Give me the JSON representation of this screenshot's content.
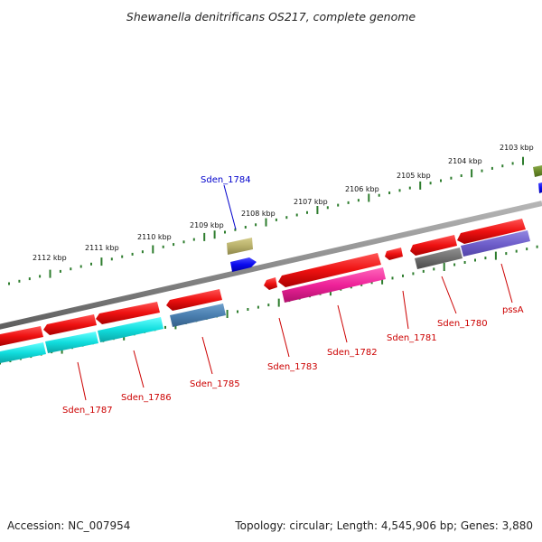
{
  "title": "Shewanella denitrificans OS217, complete genome",
  "footer": {
    "accession": "Accession: NC_007954",
    "topology": "Topology: circular; Length: 4,545,906 bp; Genes: 3,880"
  },
  "ruler": {
    "labels": [
      "2103 kbp",
      "2104 kbp",
      "2105 kbp",
      "2106 kbp",
      "2107 kbp",
      "2108 kbp",
      "2109 kbp",
      "2110 kbp",
      "2111 kbp",
      "2112 kbp"
    ]
  },
  "genes": [
    {
      "name": "pssA",
      "color": "#cc0000"
    },
    {
      "name": "Sden_1780",
      "color": "#cc0000"
    },
    {
      "name": "Sden_1781",
      "color": "#cc0000"
    },
    {
      "name": "Sden_1782",
      "color": "#cc0000"
    },
    {
      "name": "Sden_1783",
      "color": "#cc0000"
    },
    {
      "name": "Sden_1784",
      "color": "#0000cc"
    },
    {
      "name": "Sden_1785",
      "color": "#cc0000"
    },
    {
      "name": "Sden_1786",
      "color": "#cc0000"
    },
    {
      "name": "Sden_1787",
      "color": "#cc0000"
    }
  ],
  "colors": {
    "backbone": "#8c8c8c",
    "ruler": "#2e7d2e",
    "feature_red": "#ee1111",
    "feature_magenta": "#ee2299",
    "feature_cyan": "#11dddd",
    "feature_steelblue": "#4a7fb0",
    "feature_gray": "#6f6f6f",
    "feature_slateblue": "#7060cc",
    "feature_khaki": "#b8b06a",
    "feature_blue": "#0a0aee",
    "feature_olive": "#6a8a2a"
  }
}
